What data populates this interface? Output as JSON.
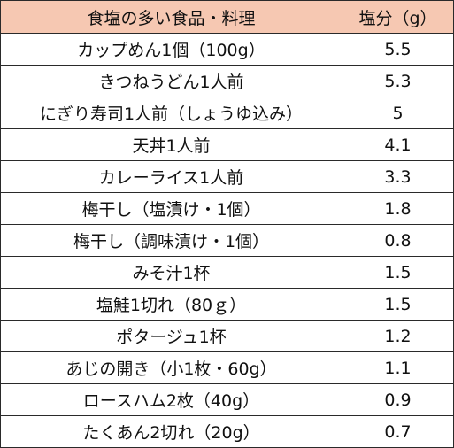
{
  "table": {
    "header": {
      "food": "食塩の多い食品・料理",
      "salt": "塩分（g）"
    },
    "rows": [
      {
        "food": "カップめん1個（100g）",
        "salt": "5.5"
      },
      {
        "food": "きつねうどん1人前",
        "salt": "5.3"
      },
      {
        "food": "にぎり寿司1人前（しょうゆ込み）",
        "salt": "5"
      },
      {
        "food": "天丼1人前",
        "salt": "4.1"
      },
      {
        "food": "カレーライス1人前",
        "salt": "3.3"
      },
      {
        "food": "梅干し（塩漬け・1個）",
        "salt": "1.8"
      },
      {
        "food": "梅干し（調味漬け・1個）",
        "salt": "0.8"
      },
      {
        "food": "みそ汁1杯",
        "salt": "1.5"
      },
      {
        "food": "塩鮭1切れ（80ｇ）",
        "salt": "1.5"
      },
      {
        "food": "ポタージュ1杯",
        "salt": "1.2"
      },
      {
        "food": "あじの開き（小1枚・60g）",
        "salt": "1.1"
      },
      {
        "food": "ロースハム2枚（40g）",
        "salt": "0.9"
      },
      {
        "food": "たくあん2切れ（20g）",
        "salt": "0.7"
      }
    ],
    "header_color": "#f6c8b2",
    "border_color": "#2a2a2a"
  }
}
